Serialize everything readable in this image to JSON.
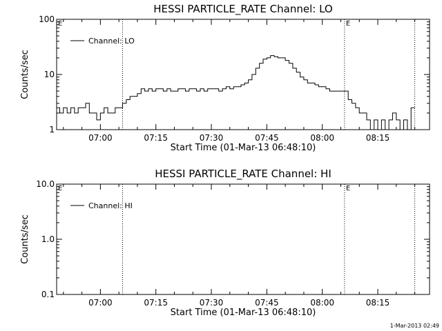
{
  "footer": {
    "timestamp": "1-Mar-2013 02:49"
  },
  "chart_data": [
    {
      "type": "line",
      "title": "HESSI PARTICLE_RATE Channel: LO",
      "xlabel": "Start Time (01-Mar-13 06:48:10)",
      "ylabel": "Counts/sec",
      "y_scale": "log",
      "ylim": [
        1,
        100
      ],
      "xlim": [
        "06:48:10",
        "08:29:00"
      ],
      "x_ticks": [
        "07:00",
        "07:15",
        "07:30",
        "07:45",
        "08:00",
        "08:15"
      ],
      "y_ticks": [
        "1",
        "10",
        "100"
      ],
      "markers": {
        "times": [
          "07:06",
          "08:06",
          "08:25"
        ],
        "flag": "E",
        "flag_positions": [
          "06:48:10",
          "08:06"
        ]
      },
      "legend": {
        "position": "top-left",
        "entries": [
          "Channel: LO"
        ]
      },
      "series": [
        {
          "name": "Channel: LO",
          "x": [
            "06:48",
            "06:49",
            "06:50",
            "06:51",
            "06:52",
            "06:53",
            "06:54",
            "06:55",
            "06:56",
            "06:57",
            "06:58",
            "06:59",
            "07:00",
            "07:01",
            "07:02",
            "07:03",
            "07:04",
            "07:05",
            "07:06",
            "07:07",
            "07:08",
            "07:09",
            "07:10",
            "07:11",
            "07:12",
            "07:13",
            "07:14",
            "07:15",
            "07:16",
            "07:17",
            "07:18",
            "07:19",
            "07:20",
            "07:21",
            "07:22",
            "07:23",
            "07:24",
            "07:25",
            "07:26",
            "07:27",
            "07:28",
            "07:29",
            "07:30",
            "07:31",
            "07:32",
            "07:33",
            "07:34",
            "07:35",
            "07:36",
            "07:37",
            "07:38",
            "07:39",
            "07:40",
            "07:41",
            "07:42",
            "07:43",
            "07:44",
            "07:45",
            "07:46",
            "07:47",
            "07:48",
            "07:49",
            "07:50",
            "07:51",
            "07:52",
            "07:53",
            "07:54",
            "07:55",
            "07:56",
            "07:57",
            "07:58",
            "07:59",
            "08:00",
            "08:01",
            "08:02",
            "08:03",
            "08:04",
            "08:05",
            "08:06",
            "08:07",
            "08:08",
            "08:09",
            "08:10",
            "08:11",
            "08:12",
            "08:13",
            "08:14",
            "08:15",
            "08:16",
            "08:17",
            "08:18",
            "08:19",
            "08:20",
            "08:21",
            "08:22",
            "08:23",
            "08:24"
          ],
          "values": [
            2.5,
            2,
            2.5,
            2,
            2.5,
            2,
            2.5,
            2.5,
            3,
            2,
            2,
            1.5,
            2,
            2.5,
            2,
            2,
            2.5,
            2.5,
            3,
            3.5,
            4,
            4,
            4.5,
            5.5,
            5,
            5.5,
            5,
            5.5,
            5.5,
            5,
            5.5,
            5,
            5,
            5.5,
            5.5,
            5,
            5.5,
            5.5,
            5,
            5.5,
            5,
            5.5,
            5.5,
            5.5,
            5,
            5.5,
            6,
            5.5,
            6,
            6,
            6.5,
            7,
            8,
            10,
            13,
            16,
            19,
            20,
            22,
            21,
            20,
            20,
            18,
            16,
            13,
            11,
            9,
            8,
            7,
            7,
            6.5,
            6,
            6,
            5.5,
            5,
            5,
            5,
            5,
            5,
            3.5,
            3,
            2.5,
            2,
            2,
            1.5,
            1,
            1.5,
            1,
            1.5,
            1,
            1.5,
            2,
            1.5,
            1,
            1.5,
            1,
            2.5
          ]
        }
      ]
    },
    {
      "type": "line",
      "title": "HESSI PARTICLE_RATE Channel: HI",
      "xlabel": "Start Time (01-Mar-13 06:48:10)",
      "ylabel": "Counts/sec",
      "y_scale": "log",
      "ylim": [
        0.1,
        10
      ],
      "xlim": [
        "06:48:10",
        "08:29:00"
      ],
      "x_ticks": [
        "07:00",
        "07:15",
        "07:30",
        "07:45",
        "08:00",
        "08:15"
      ],
      "y_ticks": [
        "0.1",
        "1.0",
        "10.0"
      ],
      "markers": {
        "times": [
          "07:06",
          "08:06",
          "08:25"
        ],
        "flag": "E",
        "flag_positions": [
          "06:48:10",
          "08:06"
        ]
      },
      "legend": {
        "position": "top-left",
        "entries": [
          "Channel: HI"
        ]
      },
      "series": [
        {
          "name": "Channel: HI",
          "x": [],
          "values": []
        }
      ]
    }
  ]
}
